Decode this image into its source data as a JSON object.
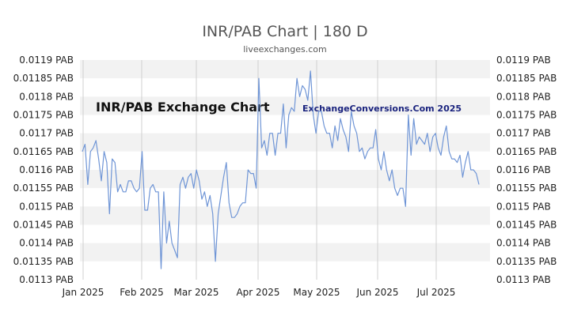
{
  "chart_data": {
    "type": "line",
    "title": "INR/PAB Chart | 180 D",
    "subtitle": "liveexchanges.com",
    "inner_title": "INR/PAB Exchange Chart",
    "watermark": "ExchangeConversions.Com 2025",
    "ylim": [
      0.0113,
      0.0119
    ],
    "y_ticks": [
      "0.0119 PAB",
      "0.01185 PAB",
      "0.0118 PAB",
      "0.01175 PAB",
      "0.0117 PAB",
      "0.01165 PAB",
      "0.0116 PAB",
      "0.01155 PAB",
      "0.0115 PAB",
      "0.01145 PAB",
      "0.0114 PAB",
      "0.01135 PAB",
      "0.0113 PAB"
    ],
    "x_ticks": [
      "Jan 2025",
      "Feb 2025",
      "Mar 2025",
      "Apr 2025",
      "May 2025",
      "Jun 2025",
      "Jul 2025"
    ],
    "grid": true,
    "line_color": "#6f95d6",
    "series": [
      {
        "values": [
          0.01165,
          0.01167,
          0.01156,
          0.01165,
          0.01166,
          0.01168,
          0.01163,
          0.01157,
          0.01165,
          0.01162,
          0.01148,
          0.01163,
          0.01162,
          0.01154,
          0.01156,
          0.01154,
          0.01154,
          0.01157,
          0.01157,
          0.01155,
          0.01154,
          0.01155,
          0.01165,
          0.01149,
          0.01149,
          0.01155,
          0.01156,
          0.01154,
          0.01154,
          0.01133,
          0.01154,
          0.0114,
          0.01146,
          0.0114,
          0.01138,
          0.01136,
          0.01156,
          0.01158,
          0.01155,
          0.01158,
          0.01159,
          0.01155,
          0.0116,
          0.01157,
          0.01152,
          0.01154,
          0.0115,
          0.01153,
          0.01148,
          0.01135,
          0.01148,
          0.01153,
          0.01158,
          0.01162,
          0.01151,
          0.01147,
          0.01147,
          0.01148,
          0.0115,
          0.01151,
          0.01151,
          0.0116,
          0.01159,
          0.01159,
          0.01155,
          0.01185,
          0.01166,
          0.01168,
          0.01164,
          0.0117,
          0.0117,
          0.01164,
          0.0117,
          0.0117,
          0.01178,
          0.01166,
          0.01175,
          0.01177,
          0.01176,
          0.01185,
          0.0118,
          0.01183,
          0.01182,
          0.01179,
          0.01187,
          0.01175,
          0.0117,
          0.01176,
          0.01176,
          0.01172,
          0.0117,
          0.0117,
          0.01166,
          0.01172,
          0.01168,
          0.01174,
          0.01171,
          0.01169,
          0.01165,
          0.01176,
          0.01172,
          0.0117,
          0.01165,
          0.01166,
          0.01163,
          0.01165,
          0.01166,
          0.01166,
          0.01171,
          0.01163,
          0.0116,
          0.01165,
          0.0116,
          0.01157,
          0.0116,
          0.01155,
          0.01153,
          0.01155,
          0.01155,
          0.0115,
          0.01175,
          0.01164,
          0.01174,
          0.01167,
          0.01169,
          0.01168,
          0.01167,
          0.0117,
          0.01165,
          0.01169,
          0.0117,
          0.01166,
          0.01164,
          0.01169,
          0.01172,
          0.01165,
          0.01163,
          0.01163,
          0.01162,
          0.01164,
          0.01158,
          0.01162,
          0.01165,
          0.0116,
          0.0116,
          0.01159,
          0.01156
        ]
      }
    ]
  }
}
